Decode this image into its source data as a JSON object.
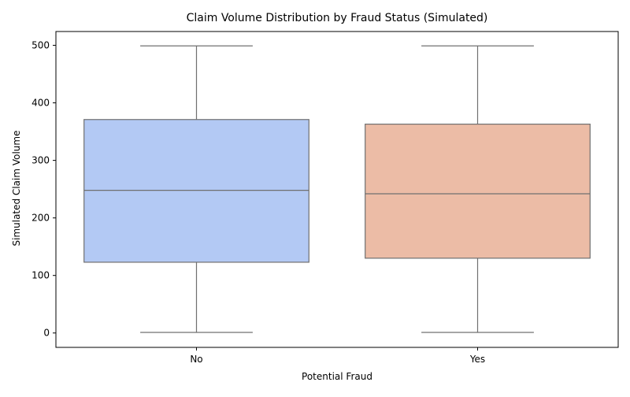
{
  "chart_data": {
    "type": "box",
    "title": "Claim Volume Distribution by Fraud Status (Simulated)",
    "xlabel": "Potential Fraud",
    "ylabel": "Simulated Claim Volume",
    "ylim": [
      -25,
      524
    ],
    "yticks": [
      0,
      100,
      200,
      300,
      400,
      500
    ],
    "categories": [
      "No",
      "Yes"
    ],
    "boxes": [
      {
        "category": "No",
        "min": 1,
        "q1": 123,
        "median": 248,
        "q3": 371,
        "max": 499,
        "color": "#b3c9f4"
      },
      {
        "category": "Yes",
        "min": 1,
        "q1": 130,
        "median": 242,
        "q3": 363,
        "max": 499,
        "color": "#ecbca6"
      }
    ],
    "grid": false,
    "legend": "none"
  },
  "colors": {
    "box_edge": "#707070",
    "axis": "#000000"
  }
}
